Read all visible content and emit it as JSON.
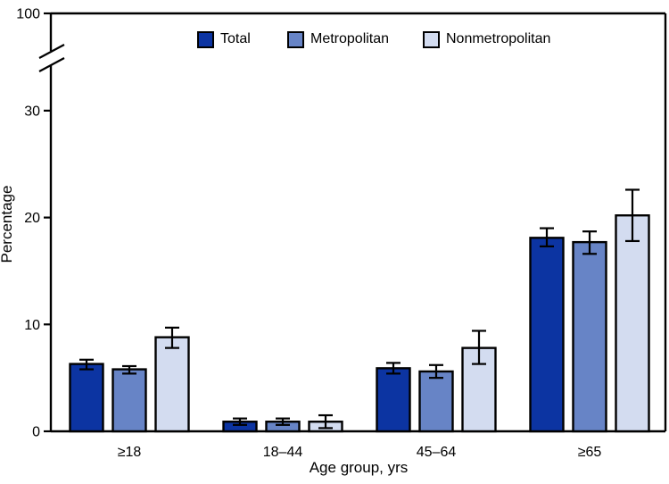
{
  "chart_data": {
    "type": "bar",
    "title": "",
    "xlabel": "Age group, yrs",
    "ylabel": "Percentage",
    "categories": [
      "≥18",
      "18–44",
      "45–64",
      "≥65"
    ],
    "series": [
      {
        "name": "Total",
        "color": "#0c34a2",
        "values": [
          6.3,
          0.9,
          5.9,
          18.1
        ],
        "ci_low": [
          5.8,
          0.6,
          5.4,
          17.3
        ],
        "ci_high": [
          6.7,
          1.2,
          6.4,
          19.0
        ]
      },
      {
        "name": "Metropolitan",
        "color": "#6784c6",
        "values": [
          5.8,
          0.9,
          5.6,
          17.7
        ],
        "ci_low": [
          5.4,
          0.6,
          5.0,
          16.6
        ],
        "ci_high": [
          6.1,
          1.2,
          6.2,
          18.7
        ]
      },
      {
        "name": "Nonmetropolitan",
        "color": "#d3dcf0",
        "values": [
          8.8,
          0.9,
          7.8,
          20.2
        ],
        "ci_low": [
          7.8,
          0.3,
          6.3,
          17.8
        ],
        "ci_high": [
          9.7,
          1.5,
          9.4,
          22.6
        ]
      }
    ],
    "yticks": [
      0,
      10,
      20,
      30
    ],
    "y_break_top_label": "100",
    "axis_break": true,
    "ylim_visible": [
      0,
      39
    ],
    "grid": false,
    "legend_position": "top-center",
    "error_bars": true,
    "axis_color": "#000000"
  }
}
